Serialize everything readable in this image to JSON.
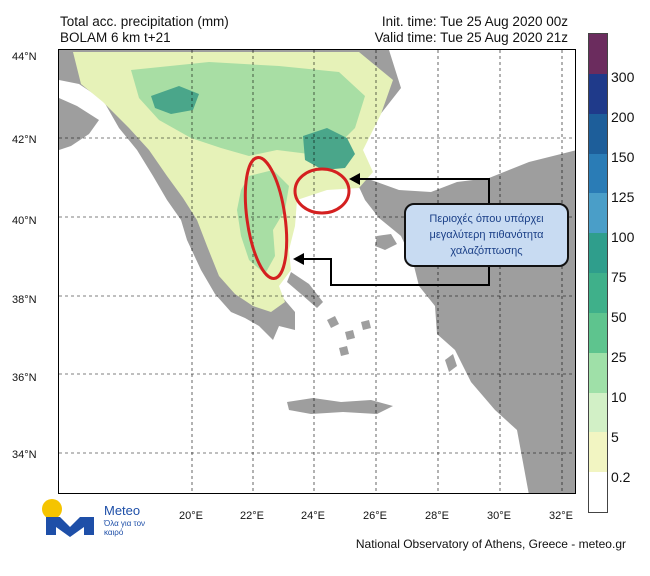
{
  "header": {
    "title_line1": "Total acc. precipitation (mm)",
    "title_line2": "BOLAM 6 km t+21",
    "init_time": "Init. time: Tue 25 Aug 2020 00z",
    "valid_time": "Valid time: Tue 25 Aug 2020 21z"
  },
  "axes": {
    "lat_labels": [
      "44°N",
      "42°N",
      "40°N",
      "38°N",
      "36°N",
      "34°N"
    ],
    "lon_labels": [
      "20°E",
      "22°E",
      "24°E",
      "26°E",
      "28°E",
      "30°E",
      "32°E"
    ]
  },
  "colorbar": {
    "labels": [
      "300",
      "200",
      "150",
      "125",
      "100",
      "75",
      "50",
      "25",
      "10",
      "5",
      "0.2"
    ],
    "colors": [
      "#6b2c5e",
      "#1f3a8a",
      "#1d5e9a",
      "#2a7cb6",
      "#4a9ec8",
      "#2f9e8c",
      "#3fb08a",
      "#5ec48e",
      "#9fe0a8",
      "#d2f0c6",
      "#f2f5c2",
      "#ffffff"
    ]
  },
  "annotation": {
    "text": "Περιοχές όπου υπάρχει\nμεγαλύτερη πιθανότητα\nχαλαζόπτωσης"
  },
  "map_colors": {
    "sea": "#ffffff",
    "land": "#9e9e9e",
    "light_precip": "#e6f2b8",
    "medium_precip": "#a8dea4",
    "heavy_precip": "#4aa68a",
    "ellipse": "#d42020"
  },
  "logo": {
    "name": "Meteo",
    "tagline": "Όλα για τον καιρό"
  },
  "footer": {
    "credit": "National Observatory of Athens, Greece - meteo.gr"
  }
}
